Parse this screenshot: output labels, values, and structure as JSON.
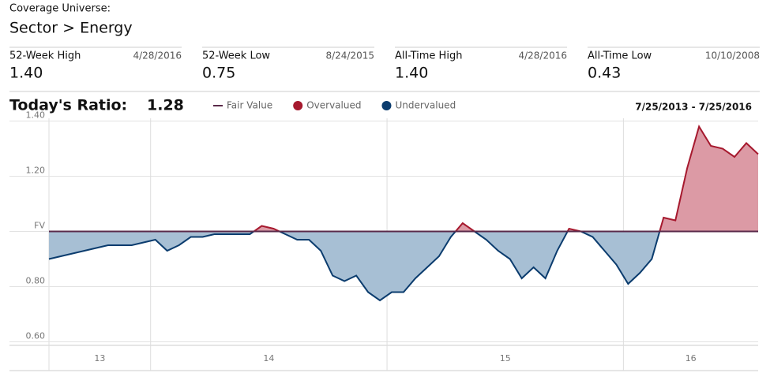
{
  "header": {
    "kicker": "Coverage Universe:",
    "title": "Sector > Energy"
  },
  "stats": [
    {
      "label": "52-Week High",
      "date": "4/28/2016",
      "value": "1.40"
    },
    {
      "label": "52-Week Low",
      "date": "8/24/2015",
      "value": "0.75"
    },
    {
      "label": "All-Time High",
      "date": "4/28/2016",
      "value": "1.40"
    },
    {
      "label": "All-Time Low",
      "date": "10/10/2008",
      "value": "0.43"
    }
  ],
  "chart_data": {
    "type": "ratio-line",
    "title": "Today's Ratio:",
    "current_value": "1.28",
    "date_range": "7/25/2013 - 7/25/2016",
    "fair_value": 1.0,
    "fair_value_color": "#5a2a4a",
    "legend": [
      {
        "name": "Fair Value",
        "color": "#5a2a4a",
        "shape": "line"
      },
      {
        "name": "Overvalued",
        "color": "#a6192e",
        "shape": "dot"
      },
      {
        "name": "Undervalued",
        "color": "#0b3c6e",
        "shape": "dot"
      }
    ],
    "over_fill": "#dc9aa5",
    "under_fill": "#a7bfd4",
    "x": [
      13.57,
      13.62,
      13.67,
      13.72,
      13.77,
      13.82,
      13.87,
      13.92,
      13.97,
      14.02,
      14.07,
      14.12,
      14.17,
      14.22,
      14.27,
      14.32,
      14.37,
      14.42,
      14.47,
      14.52,
      14.57,
      14.62,
      14.67,
      14.72,
      14.77,
      14.82,
      14.87,
      14.92,
      14.97,
      15.02,
      15.07,
      15.12,
      15.17,
      15.22,
      15.27,
      15.32,
      15.37,
      15.42,
      15.47,
      15.52,
      15.57,
      15.62,
      15.67,
      15.72,
      15.77,
      15.82,
      15.87,
      15.92,
      15.97,
      16.02,
      16.07,
      16.12,
      16.17,
      16.22,
      16.27,
      16.32,
      16.37,
      16.42,
      16.47,
      16.52,
      16.57
    ],
    "values": [
      0.9,
      0.91,
      0.92,
      0.93,
      0.94,
      0.95,
      0.95,
      0.95,
      0.96,
      0.97,
      0.93,
      0.95,
      0.98,
      0.98,
      0.99,
      0.99,
      0.99,
      0.99,
      1.02,
      1.01,
      0.99,
      0.97,
      0.97,
      0.93,
      0.84,
      0.82,
      0.84,
      0.78,
      0.75,
      0.78,
      0.78,
      0.83,
      0.87,
      0.91,
      0.98,
      1.03,
      1.0,
      0.97,
      0.93,
      0.9,
      0.83,
      0.87,
      0.83,
      0.93,
      1.01,
      1.0,
      0.98,
      0.93,
      0.88,
      0.81,
      0.85,
      0.9,
      1.05,
      1.04,
      1.23,
      1.38,
      1.31,
      1.3,
      1.27,
      1.32,
      1.28
    ],
    "xlim": [
      13.57,
      16.57
    ],
    "year_boundaries": [
      14,
      15,
      16
    ],
    "xticks": [
      {
        "value": 13.785,
        "label": "13"
      },
      {
        "value": 14.5,
        "label": "14"
      },
      {
        "value": 15.5,
        "label": "15"
      },
      {
        "value": 16.285,
        "label": "16"
      }
    ],
    "ylim": [
      0.59,
      1.41
    ],
    "yticks": [
      {
        "value": 0.6,
        "label": "0.60"
      },
      {
        "value": 0.8,
        "label": "0.80"
      },
      {
        "value": 1.0,
        "label": "FV"
      },
      {
        "value": 1.2,
        "label": "1.20"
      },
      {
        "value": 1.4,
        "label": "1.40"
      }
    ],
    "grid": true
  }
}
